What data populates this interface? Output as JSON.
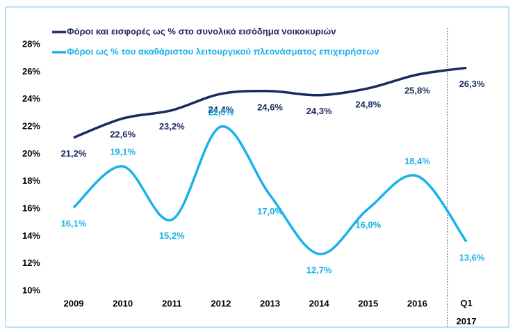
{
  "chart_data": {
    "type": "line",
    "categories": [
      "2009",
      "2010",
      "2011",
      "2012",
      "2013",
      "2014",
      "2015",
      "2016",
      "Q1 2017"
    ],
    "series": [
      {
        "name": "Φόροι και εισφορές ως % στο συνολικό εισόδημα νοικοκυριών",
        "color": "#1b2a5e",
        "values": [
          21.2,
          22.6,
          23.2,
          24.4,
          24.6,
          24.3,
          24.8,
          25.8,
          26.3
        ],
        "value_labels": [
          "21,2%",
          "22,6%",
          "23,2%",
          "24,4%",
          "24,6%",
          "24,3%",
          "24,8%",
          "25,8%",
          "26,3%"
        ]
      },
      {
        "name": "Φόροι ως % του ακαθάριστου λειτουργικού πλεονάσματος επιχειρήσεων",
        "color": "#19b2ea",
        "values": [
          16.1,
          19.1,
          15.2,
          22.0,
          17.0,
          12.7,
          16.0,
          18.4,
          13.6
        ],
        "value_labels": [
          "16,1%",
          "19,1%",
          "15,2%",
          "22,0%",
          "17,0%",
          "12,7%",
          "16,0%",
          "18,4%",
          "13,6%"
        ]
      }
    ],
    "ylim": [
      10,
      28
    ],
    "yticks": [
      {
        "value": 10,
        "label": "10%"
      },
      {
        "value": 12,
        "label": "12%"
      },
      {
        "value": 14,
        "label": "14%"
      },
      {
        "value": 16,
        "label": "16%"
      },
      {
        "value": 18,
        "label": "18%"
      },
      {
        "value": 20,
        "label": "20%"
      },
      {
        "value": 22,
        "label": "22%"
      },
      {
        "value": 24,
        "label": "24%"
      },
      {
        "value": 26,
        "label": "26%"
      },
      {
        "value": 28,
        "label": "28%"
      }
    ],
    "grid": false
  }
}
